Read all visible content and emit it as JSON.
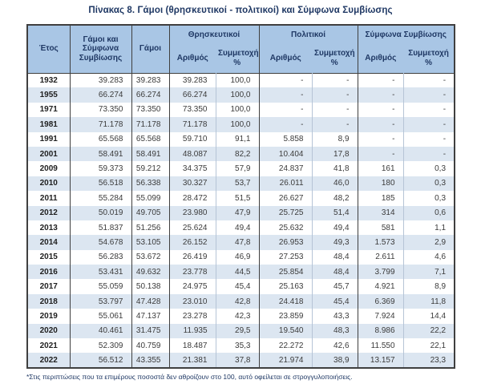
{
  "title": "Πίνακας 8. Γάμοι (θρησκευτικοί - πολιτικοί) και Σύμφωνα Συμβίωσης",
  "footnote": "*Στις περιπτώσεις που τα επιμέρους ποσοστά δεν αθροίζουν στο 100, αυτό οφείλεται σε στρογγυλοποιήσεις.",
  "colors": {
    "header_bg": "#a9c6e5",
    "row_stripe_bg": "#dce6f1",
    "border": "#3f3f3f",
    "title_text": "#1f3864"
  },
  "table": {
    "headers": {
      "year": "Έτος",
      "marriages_and_civil_unions": "Γάμοι και Σύμφωνα Συμβίωσης",
      "marriages": "Γάμοι",
      "group_religious": "Θρησκευτικοί",
      "group_civil": "Πολιτικοί",
      "group_cohabitation": "Σύμφωνα Συμβίωσης",
      "sub_number": "Αριθμός",
      "sub_share": "Συμμετοχή",
      "sub_share_pct": "%"
    },
    "rows": [
      [
        "1932",
        "39.283",
        "39.283",
        "39.283",
        "100,0",
        "-",
        "-",
        "-",
        "-"
      ],
      [
        "1955",
        "66.274",
        "66.274",
        "66.274",
        "100,0",
        "-",
        "-",
        "-",
        "-"
      ],
      [
        "1971",
        "73.350",
        "73.350",
        "73.350",
        "100,0",
        "-",
        "-",
        "-",
        "-"
      ],
      [
        "1981",
        "71.178",
        "71.178",
        "71.178",
        "100,0",
        "-",
        "-",
        "-",
        "-"
      ],
      [
        "1991",
        "65.568",
        "65.568",
        "59.710",
        "91,1",
        "5.858",
        "8,9",
        "-",
        "-"
      ],
      [
        "2001",
        "58.491",
        "58.491",
        "48.087",
        "82,2",
        "10.404",
        "17,8",
        "-",
        "-"
      ],
      [
        "2009",
        "59.373",
        "59.212",
        "34.375",
        "57,9",
        "24.837",
        "41,8",
        "161",
        "0,3"
      ],
      [
        "2010",
        "56.518",
        "56.338",
        "30.327",
        "53,7",
        "26.011",
        "46,0",
        "180",
        "0,3"
      ],
      [
        "2011",
        "55.284",
        "55.099",
        "28.472",
        "51,5",
        "26.627",
        "48,2",
        "185",
        "0,3"
      ],
      [
        "2012",
        "50.019",
        "49.705",
        "23.980",
        "47,9",
        "25.725",
        "51,4",
        "314",
        "0,6"
      ],
      [
        "2013",
        "51.837",
        "51.256",
        "25.624",
        "49,4",
        "25.632",
        "49,4",
        "581",
        "1,1"
      ],
      [
        "2014",
        "54.678",
        "53.105",
        "26.152",
        "47,8",
        "26.953",
        "49,3",
        "1.573",
        "2,9"
      ],
      [
        "2015",
        "56.283",
        "53.672",
        "26.419",
        "46,9",
        "27.253",
        "48,4",
        "2.611",
        "4,6"
      ],
      [
        "2016",
        "53.431",
        "49.632",
        "23.778",
        "44,5",
        "25.854",
        "48,4",
        "3.799",
        "7,1"
      ],
      [
        "2017",
        "55.059",
        "50.138",
        "24.975",
        "45,4",
        "25.163",
        "45,7",
        "4.921",
        "8,9"
      ],
      [
        "2018",
        "53.797",
        "47.428",
        "23.010",
        "42,8",
        "24.418",
        "45,4",
        "6.369",
        "11,8"
      ],
      [
        "2019",
        "55.061",
        "47.137",
        "23.278",
        "42,3",
        "23.859",
        "43,3",
        "7.924",
        "14,4"
      ],
      [
        "2020",
        "40.461",
        "31.475",
        "11.935",
        "29,5",
        "19.540",
        "48,3",
        "8.986",
        "22,2"
      ],
      [
        "2021",
        "52.309",
        "40.759",
        "18.487",
        "35,3",
        "22.272",
        "42,6",
        "11.550",
        "22,1"
      ],
      [
        "2022",
        "56.512",
        "43.355",
        "21.381",
        "37,8",
        "21.974",
        "38,9",
        "13.157",
        "23,3"
      ]
    ]
  }
}
